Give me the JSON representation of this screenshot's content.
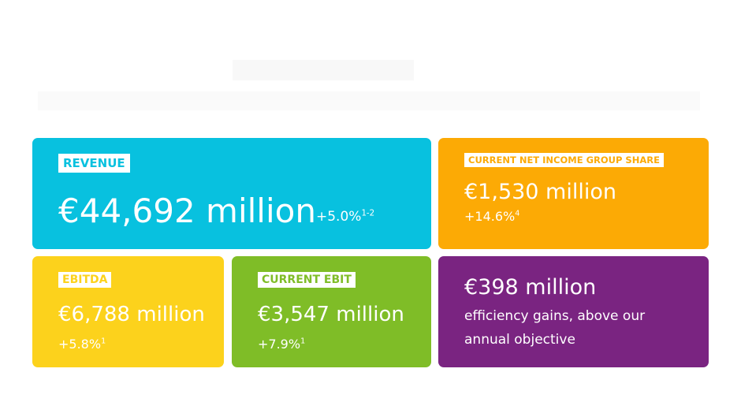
{
  "colors": {
    "revenue": "#08c1df",
    "net_income": "#fcaa05",
    "ebitda": "#fcd21c",
    "ebit": "#7fbd27",
    "efficiency": "#7a2481"
  },
  "revenue": {
    "label": "REVENUE",
    "value": "€44,692 million",
    "change": "+5.0%",
    "change_note": "1-2"
  },
  "net_income": {
    "label": "CURRENT NET INCOME GROUP SHARE",
    "value": "€1,530 million",
    "change": "+14.6%",
    "change_note": "4"
  },
  "ebitda": {
    "label": "EBITDA",
    "value": "€6,788 million",
    "change": "+5.8%",
    "change_note": "1"
  },
  "ebit": {
    "label": "CURRENT EBIT",
    "value": "€3,547 million",
    "change": "+7.9%",
    "change_note": "1"
  },
  "efficiency": {
    "value": "€398 million",
    "line1": "efficiency gains, above our",
    "line2": "annual objective"
  }
}
